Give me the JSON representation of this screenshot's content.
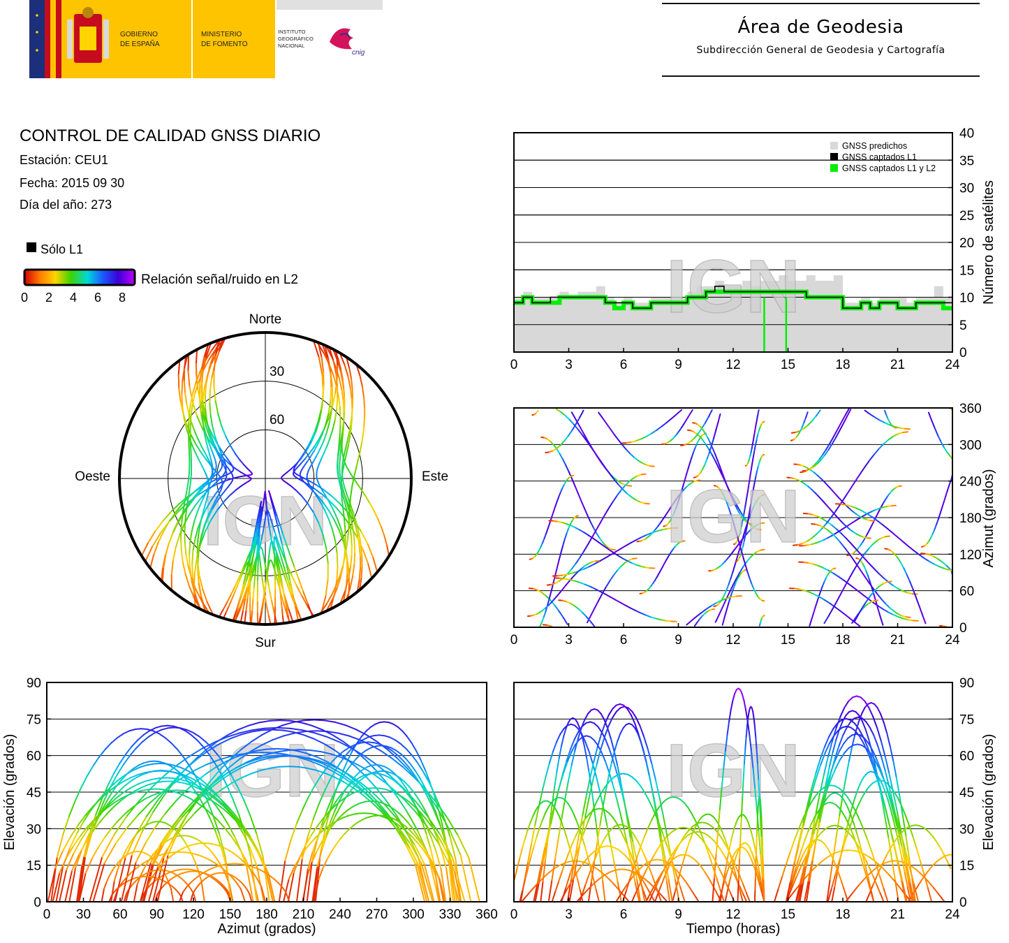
{
  "header": {
    "logo": {
      "gobierno": "GOBIERNO DE ESPAÑA",
      "ministerio": "MINISTERIO DE FOMENTO",
      "instituto": "INSTITUTO GEOGRÁFICO NACIONAL",
      "cnig": "cnig"
    },
    "area_title": "Área de Geodesia",
    "area_subtitle": "Subdirección General de Geodesia y Cartografía"
  },
  "info": {
    "title": "CONTROL DE CALIDAD GNSS DIARIO",
    "station": "Estación: CEU1",
    "date": "Fecha: 2015 09 30",
    "doy": "Día del año: 273"
  },
  "legend": {
    "l1_only": "Sólo L1",
    "snr_label": "Relación señal/ruido en L2",
    "snr_ticks": [
      "0",
      "2",
      "4",
      "6",
      "8"
    ],
    "colorscale": [
      "#d40000",
      "#ff7a00",
      "#ffd400",
      "#3cd400",
      "#00d8d8",
      "#1a5aff",
      "#3b00d8",
      "#c000ff"
    ]
  },
  "watermark": "IGN",
  "chart_data": [
    {
      "type": "step-area",
      "id": "satellites",
      "ylabel": "Número de satélites",
      "xlim": [
        0,
        24
      ],
      "ylim": [
        0,
        40
      ],
      "xticks": [
        "0",
        "3",
        "6",
        "9",
        "12",
        "15",
        "18",
        "21",
        "24"
      ],
      "yticks": [
        "0",
        "5",
        "10",
        "15",
        "20",
        "25",
        "30",
        "35",
        "40"
      ],
      "legend": [
        "GNSS predichos",
        "GNSS captados L1",
        "GNSS captados L1 y L2"
      ],
      "colors": {
        "predicted": "#d8d8d8",
        "l1": "#000000",
        "l1l2": "#00ee00"
      },
      "x": [
        0,
        0.5,
        1,
        1.5,
        2,
        2.5,
        3,
        3.5,
        4,
        4.5,
        5,
        5.5,
        6,
        6.5,
        7,
        7.5,
        8,
        8.5,
        9,
        9.5,
        10,
        10.5,
        11,
        11.5,
        12,
        12.5,
        13,
        13.5,
        14,
        14.5,
        15,
        15.5,
        16,
        16.5,
        17,
        17.5,
        18,
        18.5,
        19,
        19.5,
        20,
        20.5,
        21,
        21.5,
        22,
        22.5,
        23,
        23.5
      ],
      "predicted": [
        10,
        11,
        10,
        10,
        10,
        11,
        10,
        11,
        11,
        12,
        10,
        9,
        10,
        9,
        9,
        10,
        10,
        10,
        10,
        11,
        12,
        12,
        13,
        12,
        12,
        13,
        12,
        13,
        13,
        14,
        13,
        13,
        14,
        13,
        13,
        14,
        9,
        9,
        10,
        9,
        10,
        10,
        10,
        9,
        10,
        10,
        12,
        10
      ],
      "l1": [
        9,
        10,
        9,
        9,
        10,
        10,
        10,
        10,
        10,
        10,
        9,
        9,
        9,
        8,
        8,
        9,
        9,
        9,
        9,
        10,
        10,
        11,
        12,
        11,
        11,
        11,
        11,
        11,
        11,
        11,
        11,
        11,
        10,
        10,
        10,
        10,
        8,
        8,
        9,
        8,
        9,
        9,
        8,
        8,
        9,
        9,
        9,
        9
      ],
      "l1l2": [
        9,
        10,
        9,
        9,
        9,
        10,
        10,
        10,
        10,
        10,
        9,
        8,
        9,
        8,
        8,
        9,
        9,
        9,
        9,
        10,
        10,
        11,
        11,
        11,
        11,
        11,
        11,
        11,
        11,
        11,
        11,
        11,
        10,
        10,
        10,
        10,
        8,
        8,
        9,
        8,
        9,
        9,
        8,
        8,
        9,
        9,
        9,
        8
      ],
      "drops": [
        {
          "x": 13.7,
          "y": 0
        },
        {
          "x": 14.9,
          "y": 0
        }
      ]
    },
    {
      "type": "scatter",
      "id": "azimuth-time",
      "ylabel": "Azimut (grados)",
      "xlim": [
        0,
        24
      ],
      "ylim": [
        0,
        360
      ],
      "xticks": [
        "0",
        "3",
        "6",
        "9",
        "12",
        "15",
        "18",
        "21",
        "24"
      ],
      "yticks": [
        "0",
        "60",
        "120",
        "180",
        "240",
        "300",
        "360"
      ]
    },
    {
      "type": "polar",
      "id": "skyplot",
      "labels": {
        "north": "Norte",
        "south": "Sur",
        "east": "Este",
        "west": "Oeste"
      },
      "rings": [
        "30",
        "60"
      ]
    },
    {
      "type": "scatter",
      "id": "elevation-azimuth",
      "xlabel": "Azimut (grados)",
      "ylabel": "Elevación (grados)",
      "xlim": [
        0,
        360
      ],
      "ylim": [
        0,
        90
      ],
      "xticks": [
        "0",
        "30",
        "60",
        "90",
        "120",
        "150",
        "180",
        "210",
        "240",
        "270",
        "300",
        "330",
        "360"
      ],
      "yticks": [
        "0",
        "15",
        "30",
        "45",
        "60",
        "75",
        "90"
      ]
    },
    {
      "type": "scatter",
      "id": "elevation-time",
      "xlabel": "Tiempo (horas)",
      "ylabel": "Elevación (grados)",
      "xlim": [
        0,
        24
      ],
      "ylim": [
        0,
        90
      ],
      "xticks": [
        "0",
        "3",
        "6",
        "9",
        "12",
        "15",
        "18",
        "21",
        "24"
      ],
      "yticks": [
        "0",
        "15",
        "30",
        "45",
        "60",
        "75",
        "90"
      ]
    }
  ]
}
